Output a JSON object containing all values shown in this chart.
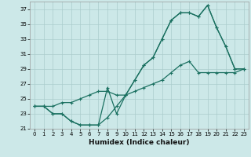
{
  "xlabel": "Humidex (Indice chaleur)",
  "bg_color": "#cce8e8",
  "grid_color": "#aacccc",
  "line_color": "#1a7060",
  "xlim": [
    -0.5,
    23.5
  ],
  "ylim": [
    21,
    38
  ],
  "xticks": [
    0,
    1,
    2,
    3,
    4,
    5,
    6,
    7,
    8,
    9,
    10,
    11,
    12,
    13,
    14,
    15,
    16,
    17,
    18,
    19,
    20,
    21,
    22,
    23
  ],
  "yticks": [
    21,
    23,
    25,
    27,
    29,
    31,
    33,
    35,
    37
  ],
  "line1_x": [
    0,
    1,
    2,
    3,
    4,
    5,
    6,
    7,
    8,
    9,
    10,
    11,
    12,
    13,
    14,
    15,
    16,
    17,
    18,
    19,
    20,
    21,
    22,
    23
  ],
  "line1_y": [
    24.0,
    24.0,
    23.0,
    23.0,
    22.0,
    21.5,
    21.5,
    21.5,
    22.5,
    24.0,
    25.5,
    27.5,
    29.5,
    30.5,
    33.0,
    35.5,
    36.5,
    36.5,
    36.0,
    37.5,
    34.5,
    32.0,
    29.0,
    29.0
  ],
  "line2_x": [
    0,
    1,
    2,
    3,
    4,
    5,
    6,
    7,
    8,
    9,
    10,
    11,
    12,
    13,
    14,
    15,
    16,
    17,
    18,
    19,
    20,
    21,
    22,
    23
  ],
  "line2_y": [
    24.0,
    24.0,
    23.0,
    23.0,
    22.0,
    21.5,
    21.5,
    21.5,
    26.5,
    23.0,
    25.5,
    27.5,
    29.5,
    30.5,
    33.0,
    35.5,
    36.5,
    36.5,
    36.0,
    37.5,
    34.5,
    32.0,
    29.0,
    29.0
  ],
  "line3_x": [
    0,
    1,
    2,
    3,
    4,
    5,
    6,
    7,
    8,
    9,
    10,
    11,
    12,
    13,
    14,
    15,
    16,
    17,
    18,
    19,
    20,
    21,
    22,
    23
  ],
  "line3_y": [
    24.0,
    24.0,
    24.0,
    24.5,
    24.5,
    25.0,
    25.5,
    26.0,
    26.0,
    25.5,
    25.5,
    26.0,
    26.5,
    27.0,
    27.5,
    28.5,
    29.5,
    30.0,
    28.5,
    28.5,
    28.5,
    28.5,
    28.5,
    29.0
  ],
  "xlabel_fontsize": 6.5,
  "tick_fontsize": 5
}
